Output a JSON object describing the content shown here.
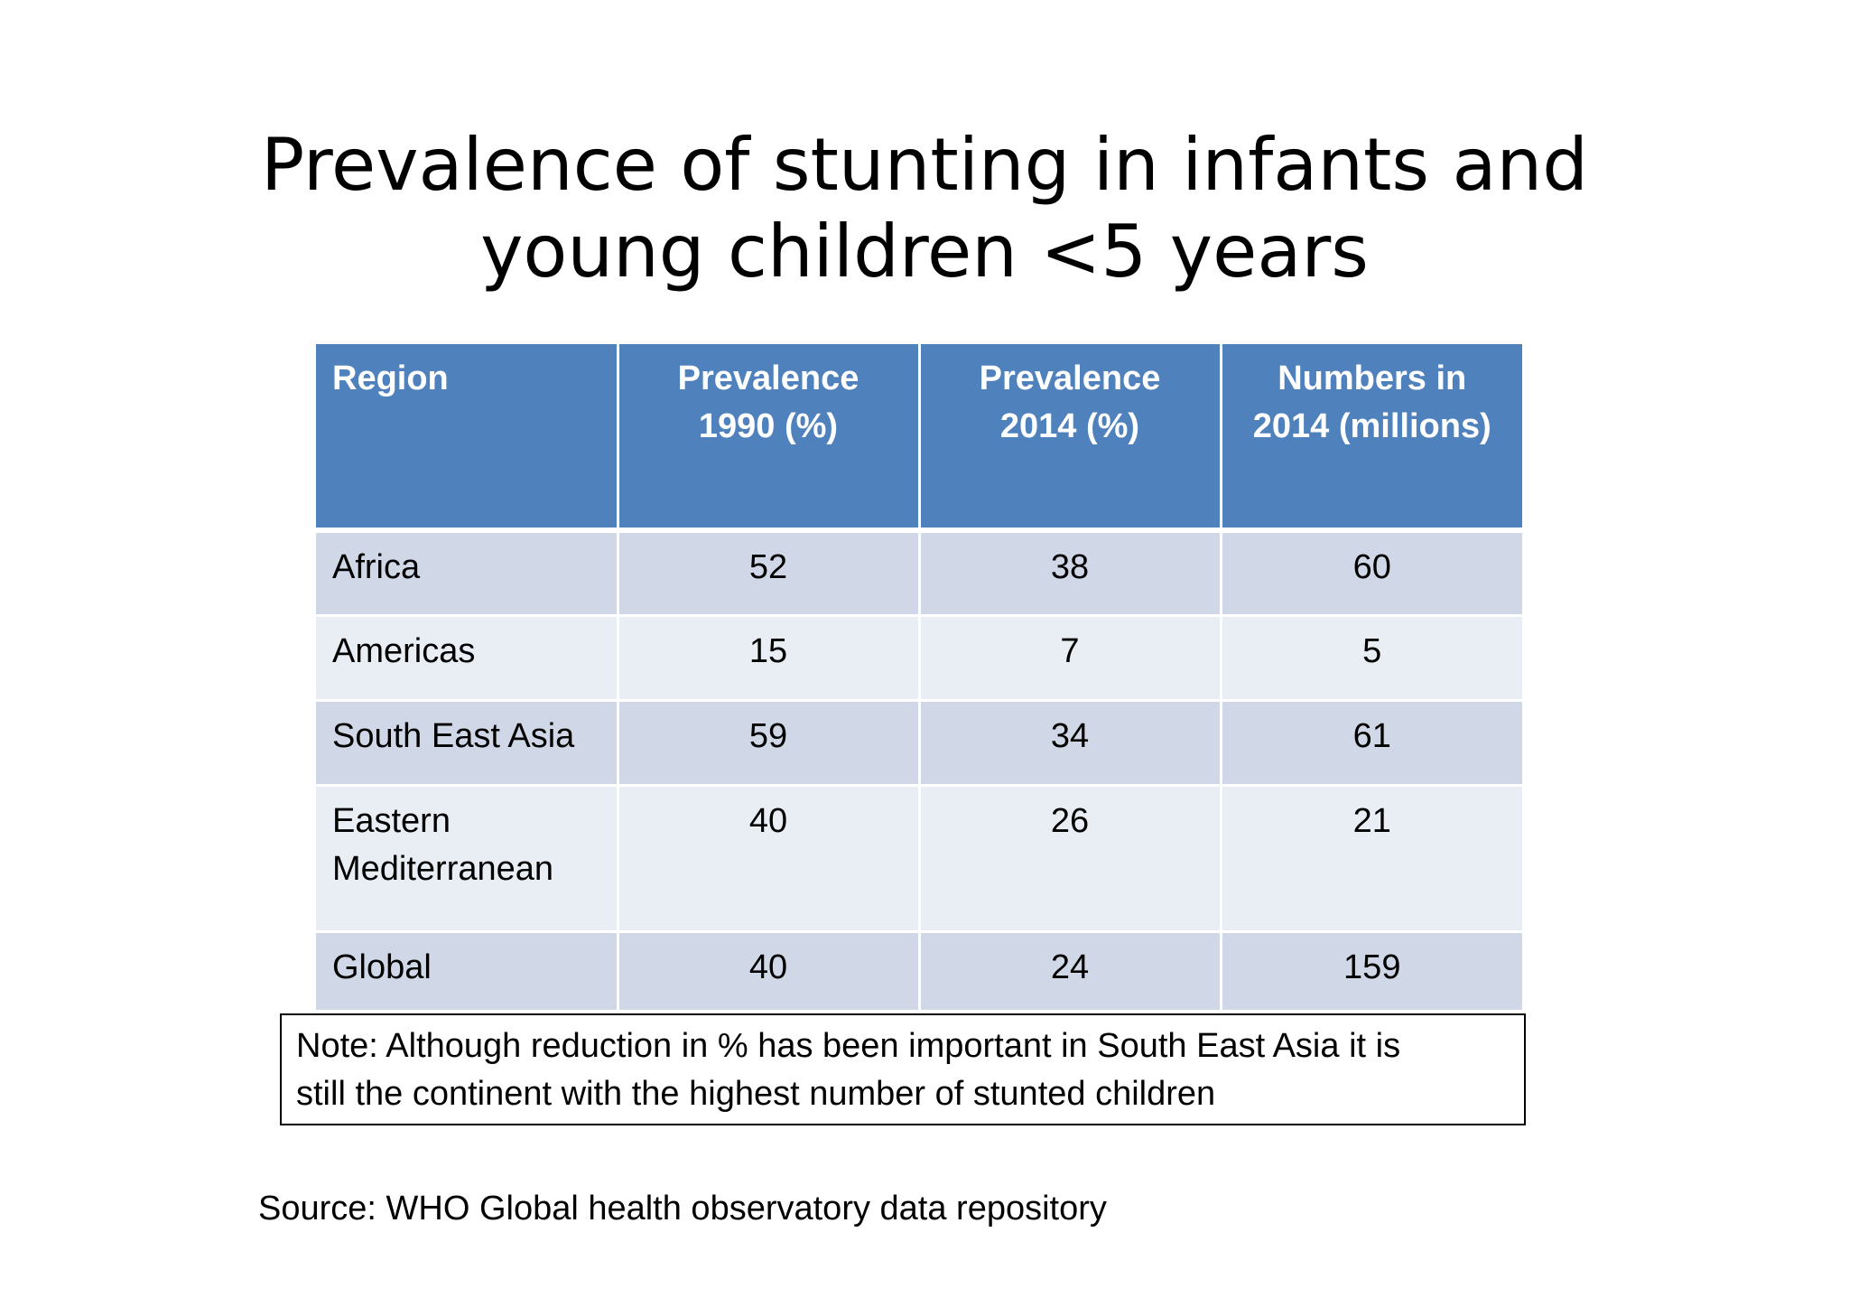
{
  "title": {
    "line1": "Prevalence of stunting in infants and",
    "line2": "young children <5 years"
  },
  "table": {
    "headers": [
      {
        "line1": "Region",
        "line2": ""
      },
      {
        "line1": "Prevalence",
        "line2": "1990 (%)"
      },
      {
        "line1": "Prevalence",
        "line2": "2014 (%)"
      },
      {
        "line1": "Numbers in",
        "line2": "2014 (millions)"
      }
    ],
    "rows": [
      {
        "region_line1": "Africa",
        "region_line2": "",
        "prev_1990": "52",
        "prev_2014": "38",
        "numbers_2014": "60"
      },
      {
        "region_line1": "Americas",
        "region_line2": "",
        "prev_1990": "15",
        "prev_2014": "7",
        "numbers_2014": "5"
      },
      {
        "region_line1": "South East Asia",
        "region_line2": "",
        "prev_1990": "59",
        "prev_2014": "34",
        "numbers_2014": "61"
      },
      {
        "region_line1": "Eastern",
        "region_line2": "Mediterranean",
        "prev_1990": "40",
        "prev_2014": "26",
        "numbers_2014": "21"
      },
      {
        "region_line1": "Global",
        "region_line2": "",
        "prev_1990": "40",
        "prev_2014": "24",
        "numbers_2014": "159"
      }
    ]
  },
  "note": {
    "line1": "Note: Although reduction in % has been important in South East Asia it is",
    "line2": "still the continent with the highest number of stunted children"
  },
  "source": "Source: WHO Global health observatory data repository",
  "colors": {
    "header_bg": "#4f81bd",
    "row_dark": "#d0d8e8",
    "row_light": "#e9edf4"
  }
}
